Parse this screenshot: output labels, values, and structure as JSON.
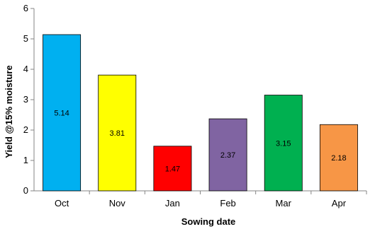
{
  "chart_data": {
    "type": "bar",
    "categories": [
      "Oct",
      "Nov",
      "Jan",
      "Feb",
      "Mar",
      "Apr"
    ],
    "values": [
      5.14,
      3.81,
      1.47,
      2.37,
      3.15,
      2.18
    ],
    "data_labels": [
      "5.14",
      "3.81",
      "1.47",
      "2.37",
      "3.15",
      "2.18"
    ],
    "bar_colors": [
      "#00B0F0",
      "#FFFF00",
      "#FF0000",
      "#8064A2",
      "#00B050",
      "#F79646"
    ],
    "title": "",
    "xlabel": "Sowing date",
    "ylabel": "Yield @15% moisture",
    "ylim": [
      0,
      6
    ],
    "yticks": [
      0,
      1,
      2,
      3,
      4,
      5,
      6
    ],
    "ytick_labels": [
      "0",
      "1",
      "2",
      "3",
      "4",
      "5",
      "6"
    ],
    "grid": false,
    "legend": "none"
  }
}
